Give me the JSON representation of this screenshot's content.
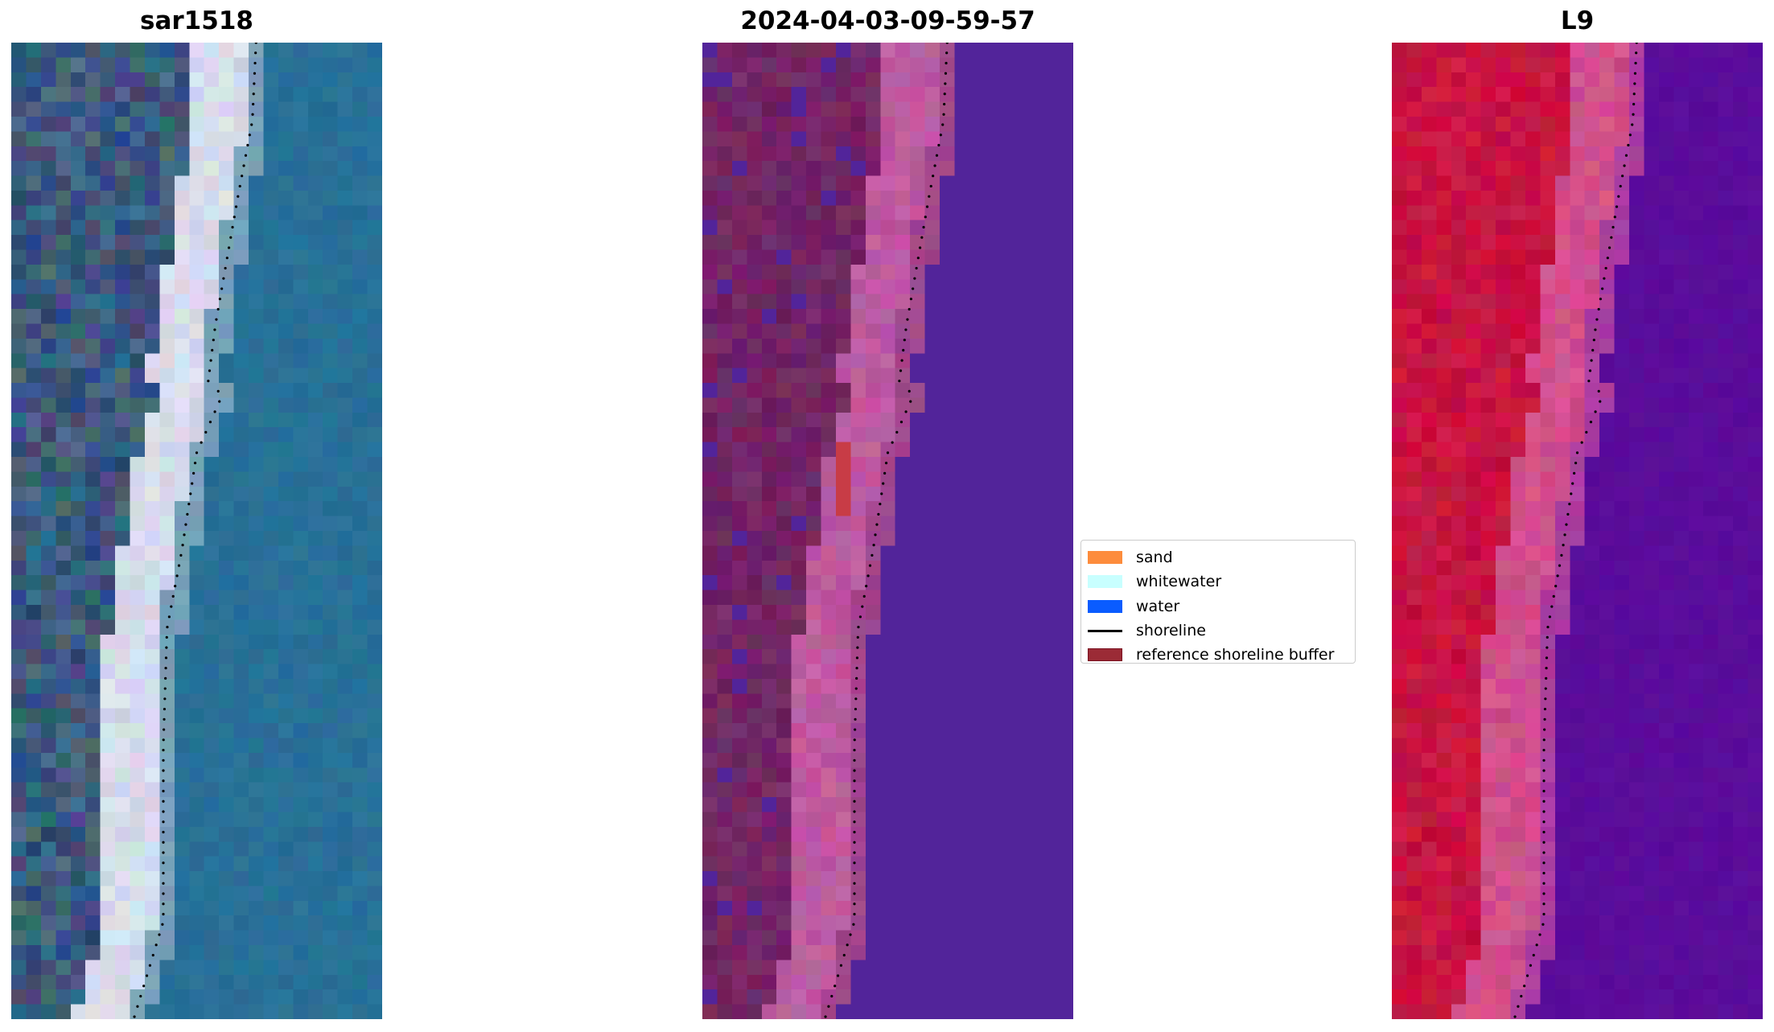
{
  "panels": [
    {
      "title": "sar1518",
      "palette": "true-color"
    },
    {
      "title": "2024-04-03-09-59-57",
      "palette": "classified-false-color"
    },
    {
      "title": "L9",
      "palette": "false-color"
    }
  ],
  "legend": {
    "items": [
      {
        "label": "sand",
        "color": "#fd8c3c",
        "type": "patch"
      },
      {
        "label": "whitewater",
        "color": "#c8ffff",
        "type": "patch"
      },
      {
        "label": "water",
        "color": "#0a5cff",
        "type": "patch"
      },
      {
        "label": "shoreline",
        "color": "#000000",
        "type": "line"
      },
      {
        "label": "reference shoreline buffer",
        "color": "#9b2b36",
        "type": "patch"
      }
    ]
  }
}
